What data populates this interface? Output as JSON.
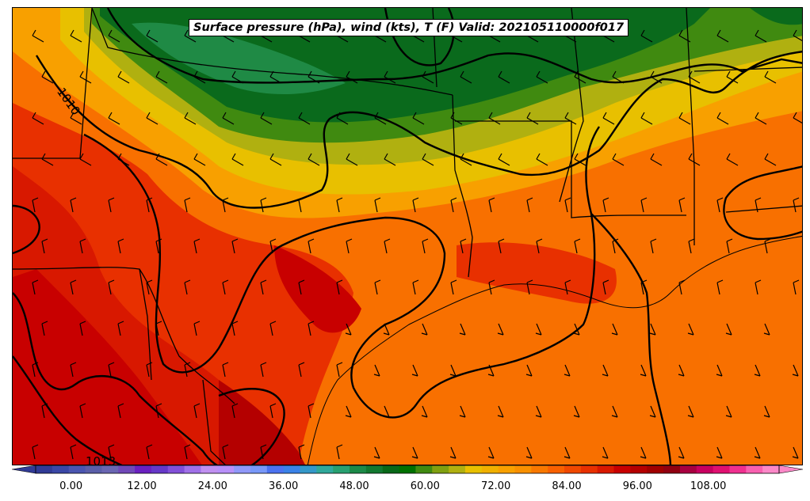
{
  "title": "Surface pressure (hPa), wind (kts), T (F) Valid: 202105110000f017",
  "isobar_labels": [
    "1010",
    "1013"
  ],
  "colorbar": {
    "tick_labels": [
      "0.00",
      "12.00",
      "24.00",
      "36.00",
      "48.00",
      "60.00",
      "72.00",
      "84.00",
      "96.00",
      "108.00"
    ],
    "range": [
      -6,
      120
    ],
    "step": 3,
    "extend": "both",
    "colors": [
      "#303a96",
      "#3a47a6",
      "#4a55b0",
      "#5a5ea8",
      "#6a66b2",
      "#7048b8",
      "#6a20c0",
      "#6638c8",
      "#8250d8",
      "#a070e8",
      "#c090f0",
      "#b890f8",
      "#9098f8",
      "#7898f8",
      "#4b72f0",
      "#3a82e8",
      "#3498c8",
      "#30a89a",
      "#28a070",
      "#1c8a48",
      "#127830",
      "#086818",
      "#007000",
      "#408a10",
      "#80a010",
      "#b0b010",
      "#e8c000",
      "#f0b000",
      "#f8a000",
      "#f89000",
      "#f87800",
      "#f86000",
      "#f04800",
      "#e83000",
      "#d81800",
      "#c80000",
      "#b40000",
      "#a00000",
      "#900010",
      "#a80040",
      "#c80060",
      "#e01070",
      "#f03090",
      "#f860b0",
      "#fc88c8"
    ]
  },
  "map": {
    "fields": "temperature (F) filled, isobars (hPa), wind barbs (kts)",
    "colors": {
      "cold_band": "#0a6a1c",
      "mid_band": "#e8c000",
      "warm": "#f86000",
      "hot": "#c80000",
      "gulf": "#f86a00"
    }
  }
}
